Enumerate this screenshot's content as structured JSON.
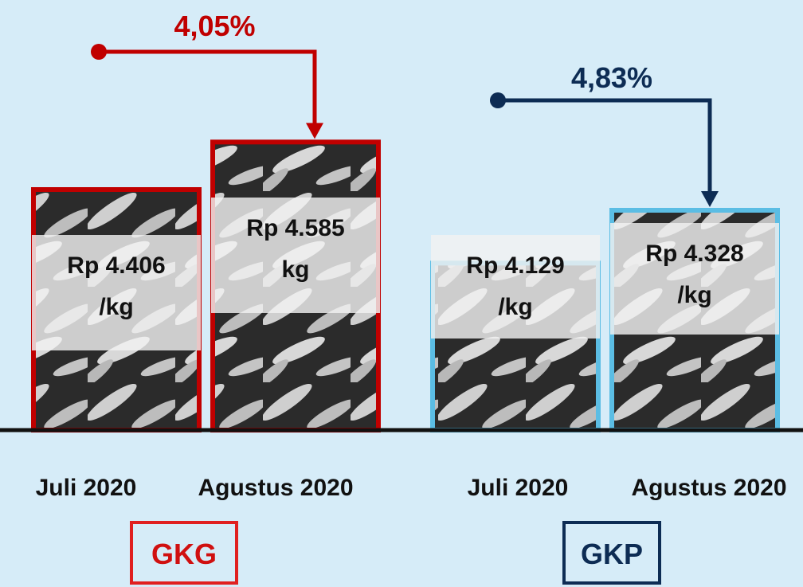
{
  "chart_data": {
    "type": "bar",
    "unit": "Rp/kg",
    "ylim": [
      0,
      4700
    ],
    "groups": [
      {
        "name": "GKG",
        "color": "#c00000",
        "change_label": "4,05%",
        "bars": [
          {
            "category": "Juli 2020",
            "value": 4406,
            "label_lines": [
              "Rp 4.406",
              "/kg"
            ]
          },
          {
            "category": "Agustus 2020",
            "value": 4585,
            "label_lines": [
              "Rp 4.585",
              "kg"
            ]
          }
        ]
      },
      {
        "name": "GKP",
        "color": "#5bbde4",
        "arrow_color": "#0d2c54",
        "change_label": "4,83%",
        "bars": [
          {
            "category": "Juli 2020",
            "value": 4129,
            "label_lines": [
              "Rp 4.129",
              "/kg"
            ]
          },
          {
            "category": "Agustus 2020",
            "value": 4328,
            "label_lines": [
              "Rp 4.328",
              "/kg"
            ]
          }
        ]
      }
    ],
    "colors": {
      "background": "#d6ecf8",
      "axis": "#111111",
      "rice_dark": "#2b2b2b",
      "rice_grain": "#cfcfcf",
      "label_box": "#f2f2f2",
      "gkg_box_border": "#e02020",
      "gkg_text": "#d01010",
      "gkp_box_border": "#0d2c54",
      "gkp_text": "#0d2c54"
    }
  }
}
